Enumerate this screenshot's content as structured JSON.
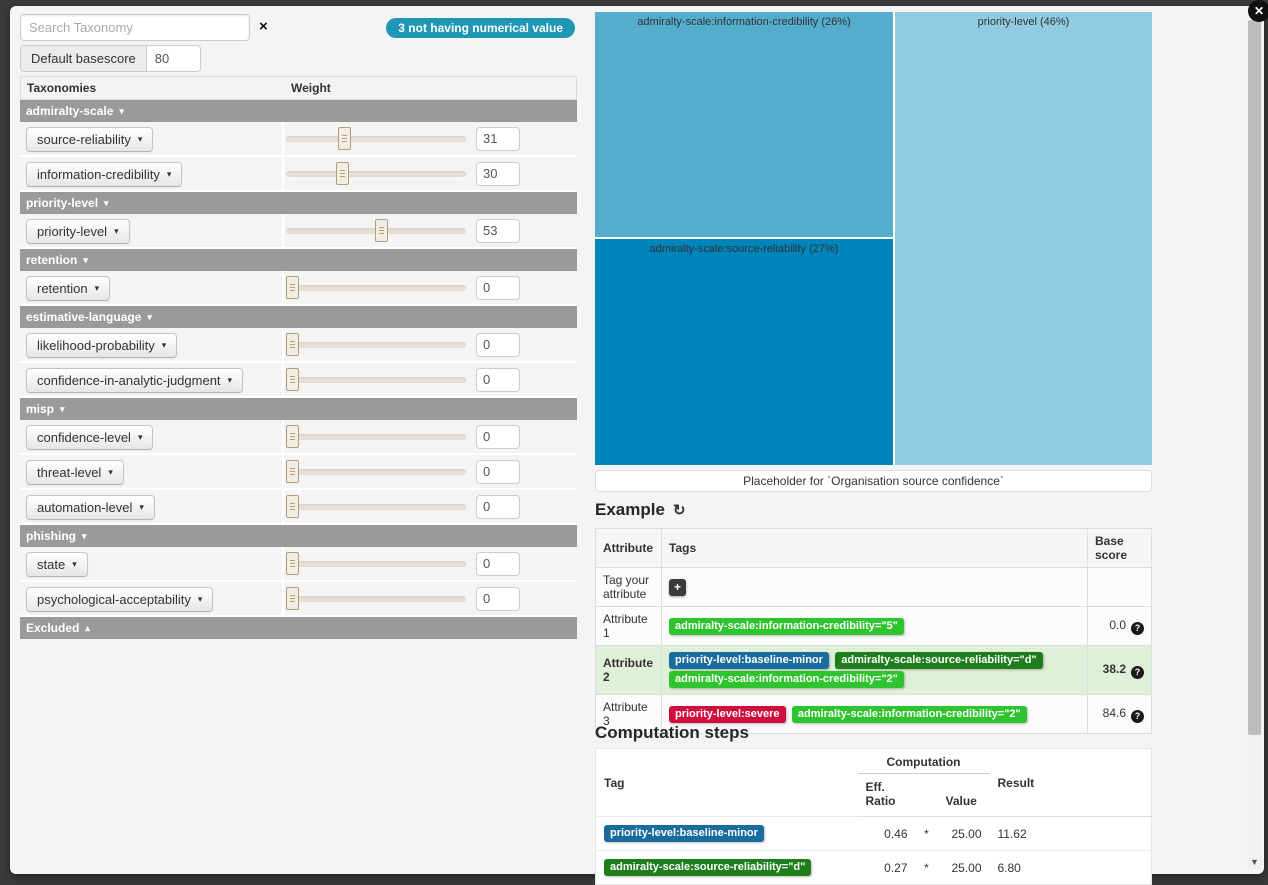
{
  "icons": {
    "close": "✕",
    "clear": "×",
    "caret_down": "▾",
    "caret_up": "▴",
    "refresh": "↻",
    "add": "+",
    "help": "?",
    "scroll_down": "▼"
  },
  "colors": {
    "badge": "#1f97b4",
    "group_header": "#9a9a9a",
    "highlight_row": "#dff0d8",
    "tag_green_bright": "#2fc42f",
    "tag_green_dark": "#1e7e1e",
    "tag_blue": "#1a6c9e",
    "tag_red": "#cf0e3e"
  },
  "left_panel": {
    "search_placeholder": "Search Taxonomy",
    "badge_label": "3 not having numerical value",
    "basescore_label": "Default basescore",
    "basescore_value": "80",
    "col_taxonomies": "Taxonomies",
    "col_weight": "Weight",
    "rows": [
      {
        "type": "group",
        "label": "admiralty-scale"
      },
      {
        "type": "item",
        "label": "source-reliability",
        "weight": "31",
        "slider": 31
      },
      {
        "type": "item",
        "label": "information-credibility",
        "weight": "30",
        "slider": 30
      },
      {
        "type": "group",
        "label": "priority-level"
      },
      {
        "type": "item",
        "label": "priority-level",
        "weight": "53",
        "slider": 53
      },
      {
        "type": "group",
        "label": "retention"
      },
      {
        "type": "item",
        "label": "retention",
        "weight": "0",
        "slider": 0
      },
      {
        "type": "group",
        "label": "estimative-language"
      },
      {
        "type": "item",
        "label": "likelihood-probability",
        "weight": "0",
        "slider": 0
      },
      {
        "type": "item",
        "label": "confidence-in-analytic-judgment",
        "weight": "0",
        "slider": 0
      },
      {
        "type": "group",
        "label": "misp"
      },
      {
        "type": "item",
        "label": "confidence-level",
        "weight": "0",
        "slider": 0
      },
      {
        "type": "item",
        "label": "threat-level",
        "weight": "0",
        "slider": 0
      },
      {
        "type": "item",
        "label": "automation-level",
        "weight": "0",
        "slider": 0
      },
      {
        "type": "group",
        "label": "phishing"
      },
      {
        "type": "item",
        "label": "state",
        "weight": "0",
        "slider": 0
      },
      {
        "type": "item",
        "label": "psychological-acceptability",
        "weight": "0",
        "slider": 0
      },
      {
        "type": "group",
        "label": "Excluded",
        "collapsed": true
      }
    ]
  },
  "treemap": {
    "type": "treemap",
    "boxes": [
      {
        "label": "admiralty-scale:information-credibility (26%)",
        "pct": 26,
        "color": "#55adce"
      },
      {
        "label": "admiralty-scale:source-reliability (27%)",
        "pct": 27,
        "color": "#0084bc"
      },
      {
        "label": "priority-level (46%)",
        "pct": 46,
        "color": "#90cbe1"
      }
    ]
  },
  "placeholder_bar": "Placeholder for `Organisation source confidence`",
  "example": {
    "title": "Example",
    "headers": {
      "attribute": "Attribute",
      "tags": "Tags",
      "score": "Base score"
    },
    "rows": [
      {
        "attribute": "Tag your attribute",
        "score": "",
        "tags": []
      },
      {
        "attribute": "Attribute 1",
        "score": "0.0",
        "tags": [
          {
            "label": "admiralty-scale:information-credibility=\"5\"",
            "color": "#2fc42f"
          }
        ]
      },
      {
        "attribute": "Attribute 2",
        "score": "38.2",
        "highlight": true,
        "tags": [
          {
            "label": "priority-level:baseline-minor",
            "color": "#1a6c9e"
          },
          {
            "label": "admiralty-scale:source-reliability=\"d\"",
            "color": "#1e7e1e"
          },
          {
            "label": "admiralty-scale:information-credibility=\"2\"",
            "color": "#2fc42f"
          }
        ]
      },
      {
        "attribute": "Attribute 3",
        "score": "84.6",
        "tags": [
          {
            "label": "priority-level:severe",
            "color": "#cf0e3e"
          },
          {
            "label": "admiralty-scale:information-credibility=\"2\"",
            "color": "#2fc42f"
          }
        ]
      }
    ]
  },
  "computation": {
    "title": "Computation steps",
    "headers": {
      "tag": "Tag",
      "computation": "Computation",
      "eff_ratio": "Eff. Ratio",
      "value": "Value",
      "result": "Result"
    },
    "rows": [
      {
        "tag": "priority-level:baseline-minor",
        "color": "#1a6c9e",
        "eff_ratio": "0.46",
        "op": "*",
        "value": "25.00",
        "result": "11.62"
      },
      {
        "tag": "admiralty-scale:source-reliability=\"d\"",
        "color": "#1e7e1e",
        "eff_ratio": "0.27",
        "op": "*",
        "value": "25.00",
        "result": "6.80"
      }
    ]
  }
}
